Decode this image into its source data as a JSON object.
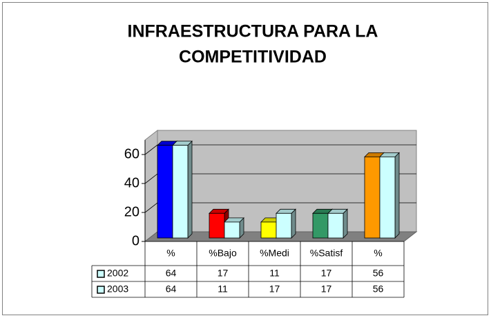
{
  "chart_data": {
    "type": "bar3d",
    "title_lines": [
      "INFRAESTRUCTURA PARA LA",
      "COMPETITIVIDAD"
    ],
    "categories": [
      "%",
      "%Bajo",
      "%Medi",
      "%Satisf",
      "%"
    ],
    "series": [
      {
        "name": "2002",
        "color": "#ccffff",
        "point_colors": [
          "#0000ff",
          "#ff0000",
          "#ffff00",
          "#339966",
          "#ff9900"
        ],
        "values": [
          64,
          17,
          11,
          17,
          56
        ]
      },
      {
        "name": "2003",
        "color": "#ccffff",
        "values": [
          64,
          11,
          17,
          17,
          56
        ]
      }
    ],
    "ylim": [
      0,
      70
    ],
    "yticks": [
      0,
      20,
      40,
      60
    ],
    "grid": true,
    "data_table": true
  }
}
